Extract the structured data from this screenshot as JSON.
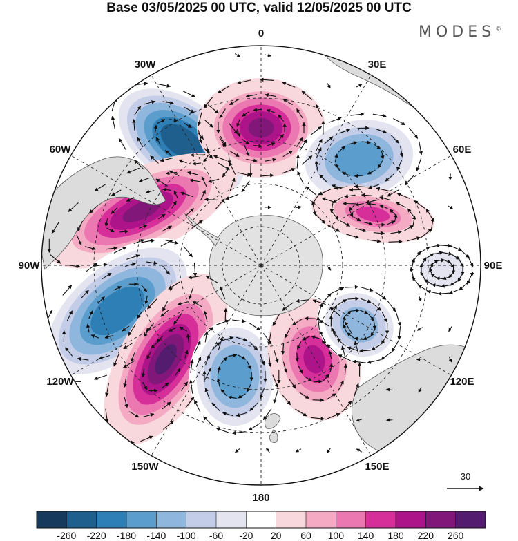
{
  "title": "Base 03/05/2025 00 UTC, valid 12/05/2025 00 UTC",
  "brand": "MODES",
  "brand_mark": "©",
  "longitude_labels": [
    "0",
    "30E",
    "60E",
    "90E",
    "120E",
    "150E",
    "180",
    "150W",
    "120W",
    "90W",
    "60W",
    "30W"
  ],
  "reference_vector": {
    "label": "30"
  },
  "colorbar": {
    "tick_labels": [
      "-260",
      "-220",
      "-180",
      "-140",
      "-100",
      "-60",
      "-20",
      "20",
      "60",
      "100",
      "140",
      "180",
      "220",
      "260"
    ],
    "colors": [
      "#163a5c",
      "#1e5f8e",
      "#2f7fb7",
      "#5b9dcc",
      "#8fb6dc",
      "#c3cde8",
      "#e4e4f1",
      "#ffffff",
      "#f8d8dc",
      "#f4aac3",
      "#ec78b1",
      "#d62f9a",
      "#ad1489",
      "#801779",
      "#531c6e"
    ]
  },
  "anomaly_centers": [
    {
      "sign": "negative",
      "level": -260
    },
    {
      "sign": "positive",
      "level": 220
    },
    {
      "sign": "negative",
      "level": -180
    },
    {
      "sign": "positive",
      "level": 220
    },
    {
      "sign": "negative",
      "level": -220
    },
    {
      "sign": "positive",
      "level": 260
    },
    {
      "sign": "negative",
      "level": -180
    },
    {
      "sign": "positive",
      "level": 180
    },
    {
      "sign": "negative",
      "level": -140
    },
    {
      "sign": "positive",
      "level": 140
    },
    {
      "sign": "negative",
      "level": -60
    }
  ]
}
